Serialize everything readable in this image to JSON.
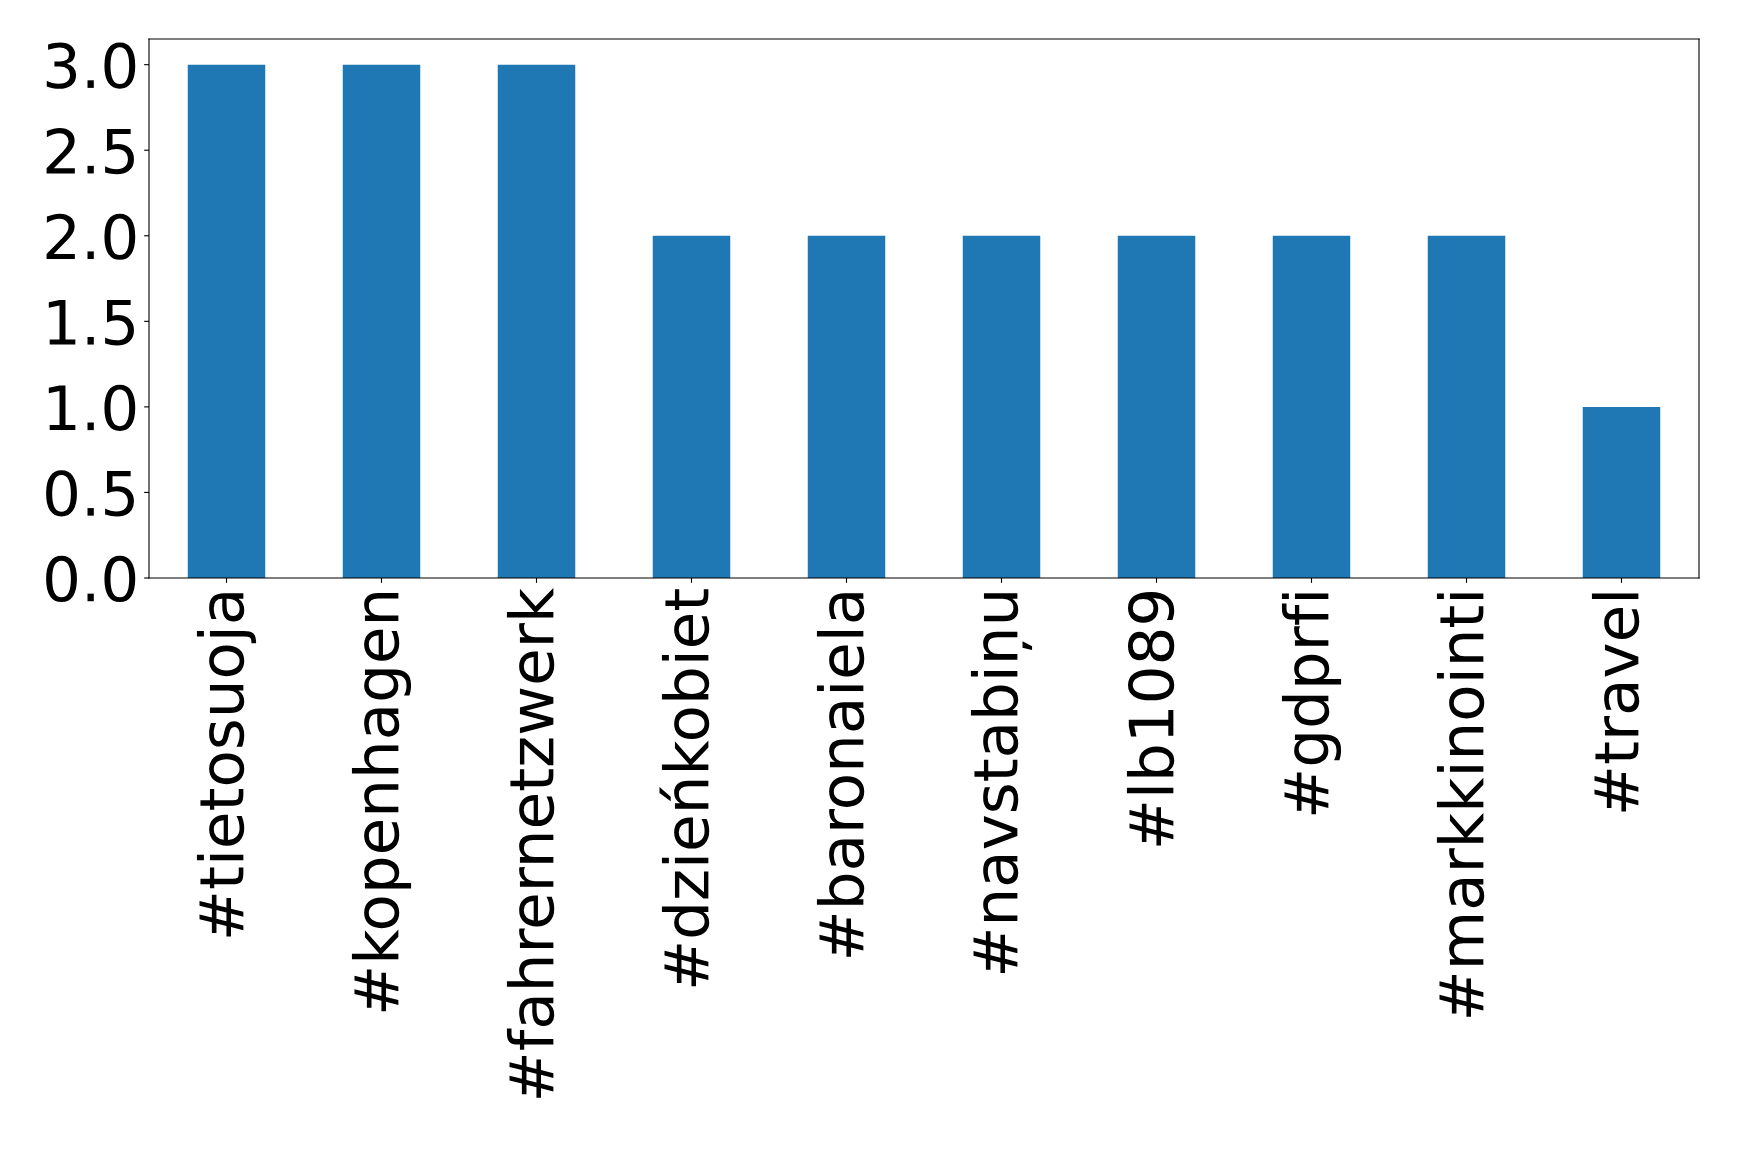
{
  "chart_data": {
    "type": "bar",
    "categories": [
      "#tietosuoja",
      "#kopenhagen",
      "#fahrernetzwerk",
      "#dzieńkobiet",
      "#baronaiela",
      "#navstabiņu",
      "#lb1089",
      "#gdprfi",
      "#markkinointi",
      "#travel"
    ],
    "values": [
      3,
      3,
      3,
      2,
      2,
      2,
      2,
      2,
      2,
      1
    ],
    "color": "#1f77b4",
    "ylim": [
      0,
      3.15
    ],
    "yticks": [
      {
        "value": 0,
        "label": "0.0"
      },
      {
        "value": 0.5,
        "label": "0.5"
      },
      {
        "value": 1,
        "label": "1.0"
      },
      {
        "value": 1.5,
        "label": "1.5"
      },
      {
        "value": 2,
        "label": "2.0"
      },
      {
        "value": 2.5,
        "label": "2.5"
      },
      {
        "value": 3,
        "label": "3.0"
      }
    ],
    "grid": false,
    "legend": false
  }
}
